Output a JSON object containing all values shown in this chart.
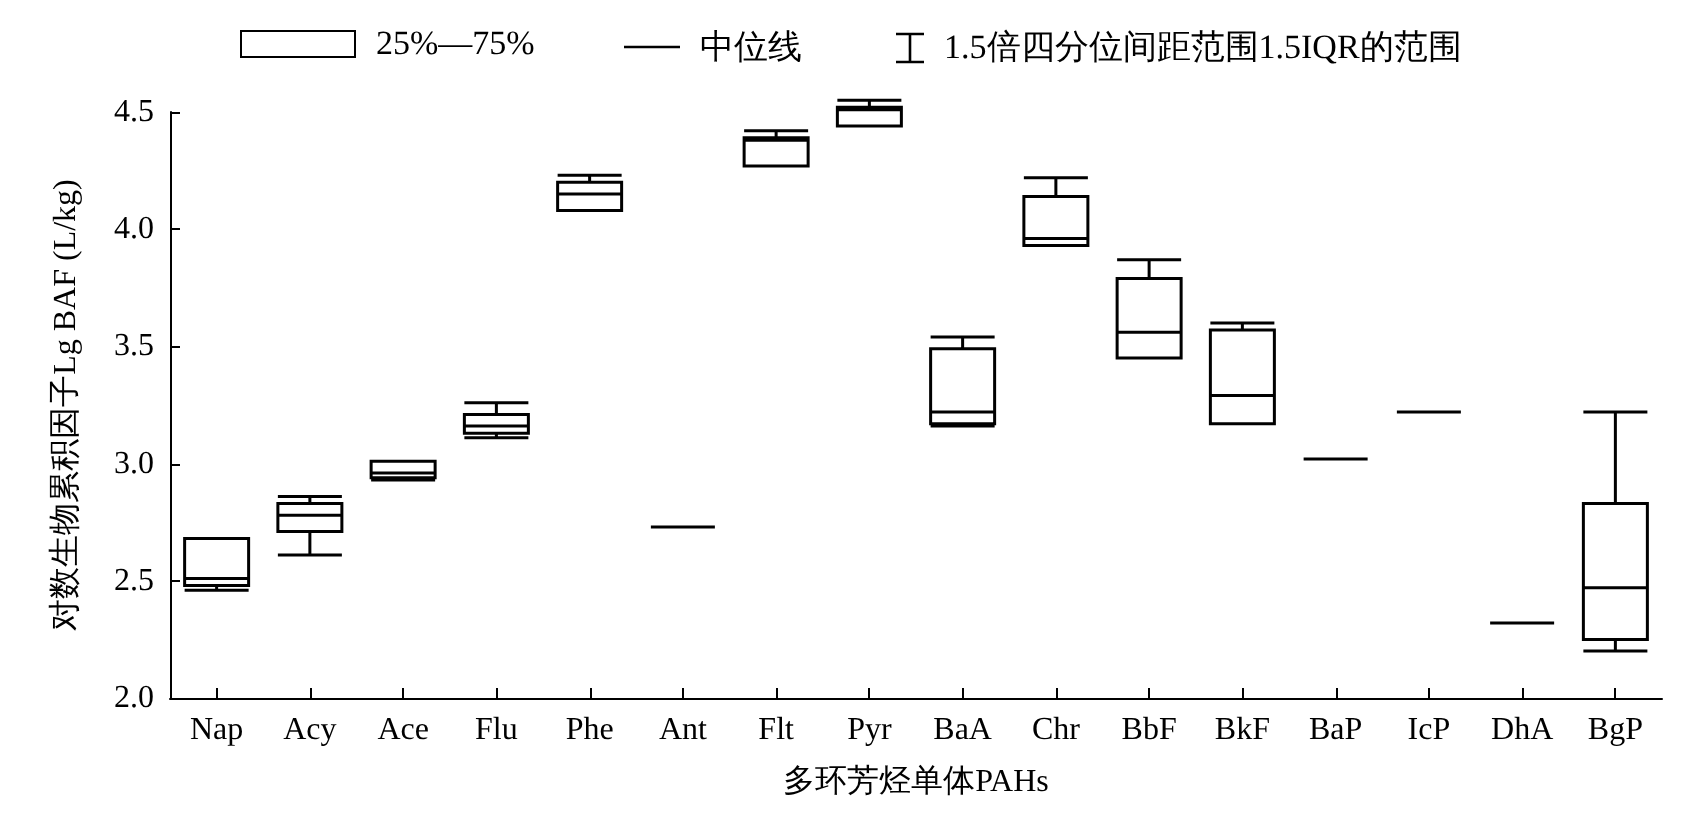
{
  "chart_data": {
    "type": "box",
    "xlabel": "多环芳烃单体PAHs",
    "ylabel": "对数生物累积因子Lg BAF (L/kg)",
    "categories": [
      "Nap",
      "Acy",
      "Ace",
      "Flu",
      "Phe",
      "Ant",
      "Flt",
      "Pyr",
      "BaA",
      "Chr",
      "BbF",
      "BkF",
      "BaP",
      "IcP",
      "DhA",
      "BgP"
    ],
    "boxes": [
      {
        "low": 2.46,
        "q1": 2.48,
        "median": 2.51,
        "q3": 2.68,
        "high": 2.68
      },
      {
        "low": 2.61,
        "q1": 2.71,
        "median": 2.78,
        "q3": 2.83,
        "high": 2.86
      },
      {
        "low": 2.93,
        "q1": 2.94,
        "median": 2.96,
        "q3": 3.01,
        "high": 3.01
      },
      {
        "low": 3.11,
        "q1": 3.13,
        "median": 3.16,
        "q3": 3.21,
        "high": 3.26
      },
      {
        "low": 4.08,
        "q1": 4.08,
        "median": 4.15,
        "q3": 4.2,
        "high": 4.23
      },
      {
        "low": 2.73,
        "q1": 2.73,
        "median": 2.73,
        "q3": 2.73,
        "high": 2.73
      },
      {
        "low": 4.27,
        "q1": 4.27,
        "median": 4.38,
        "q3": 4.39,
        "high": 4.42
      },
      {
        "low": 4.44,
        "q1": 4.44,
        "median": 4.51,
        "q3": 4.52,
        "high": 4.55
      },
      {
        "low": 3.16,
        "q1": 3.17,
        "median": 3.22,
        "q3": 3.49,
        "high": 3.54
      },
      {
        "low": 3.93,
        "q1": 3.93,
        "median": 3.96,
        "q3": 4.14,
        "high": 4.22
      },
      {
        "low": 3.45,
        "q1": 3.45,
        "median": 3.56,
        "q3": 3.79,
        "high": 3.87
      },
      {
        "low": 3.17,
        "q1": 3.17,
        "median": 3.29,
        "q3": 3.57,
        "high": 3.6
      },
      {
        "low": 3.02,
        "q1": 3.02,
        "median": 3.02,
        "q3": 3.02,
        "high": 3.02
      },
      {
        "low": 3.22,
        "q1": 3.22,
        "median": 3.22,
        "q3": 3.22,
        "high": 3.22
      },
      {
        "low": 2.32,
        "q1": 2.32,
        "median": 2.32,
        "q3": 2.32,
        "high": 2.32
      },
      {
        "low": 2.2,
        "q1": 2.25,
        "median": 2.47,
        "q3": 2.83,
        "high": 3.22
      }
    ],
    "ylim": [
      2,
      4.5
    ],
    "yticks": [
      {
        "value": 2,
        "label": "2.0"
      },
      {
        "value": 2.5,
        "label": "2.5"
      },
      {
        "value": 3,
        "label": "3.0"
      },
      {
        "value": 3.5,
        "label": "3.5"
      },
      {
        "value": 4,
        "label": "4.0"
      },
      {
        "value": 4.5,
        "label": "4.5"
      }
    ],
    "annotations": [
      "25%—75%",
      "中位线",
      "1.5倍四分位间距范围1.5IQR的范围"
    ]
  }
}
